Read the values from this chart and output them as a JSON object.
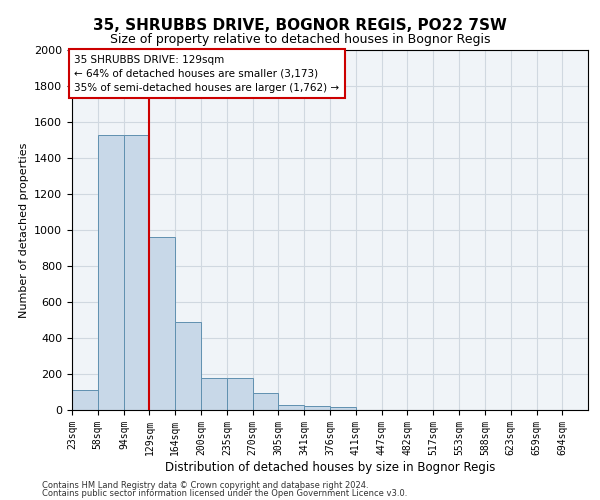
{
  "title": "35, SHRUBBS DRIVE, BOGNOR REGIS, PO22 7SW",
  "subtitle": "Size of property relative to detached houses in Bognor Regis",
  "xlabel": "Distribution of detached houses by size in Bognor Regis",
  "ylabel": "Number of detached properties",
  "footnote1": "Contains HM Land Registry data © Crown copyright and database right 2024.",
  "footnote2": "Contains public sector information licensed under the Open Government Licence v3.0.",
  "annotation_title": "35 SHRUBBS DRIVE: 129sqm",
  "annotation_line1": "← 64% of detached houses are smaller (3,173)",
  "annotation_line2": "35% of semi-detached houses are larger (1,762) →",
  "property_size": 129,
  "bar_edges": [
    23,
    58,
    94,
    129,
    164,
    200,
    235,
    270,
    305,
    341,
    376,
    411,
    447,
    482,
    517,
    553,
    588,
    623,
    659,
    694,
    729
  ],
  "bar_heights": [
    110,
    1530,
    1530,
    960,
    490,
    180,
    180,
    95,
    30,
    25,
    15,
    0,
    0,
    0,
    0,
    0,
    0,
    0,
    0,
    0
  ],
  "bar_color": "#c8d8e8",
  "bar_edge_color": "#6090b0",
  "vline_color": "#cc0000",
  "grid_color": "#d0d8e0",
  "background_color": "#f0f4f8",
  "ylim": [
    0,
    2000
  ],
  "yticks": [
    0,
    200,
    400,
    600,
    800,
    1000,
    1200,
    1400,
    1600,
    1800,
    2000
  ]
}
